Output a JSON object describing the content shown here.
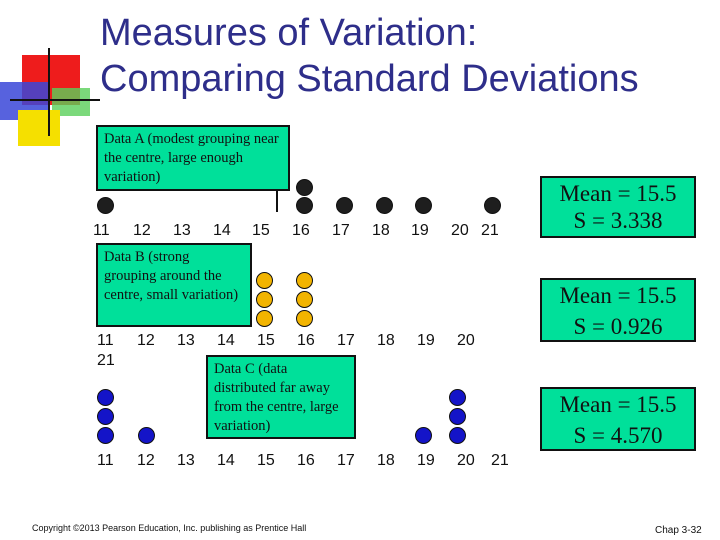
{
  "title": {
    "line1": "Measures of Variation:",
    "line2": "Comparing Standard Deviations"
  },
  "datasets": [
    {
      "label": "Data A (modest grouping near the centre, large enough variation)",
      "mean": "Mean = 15.5",
      "sd": "S = 3.338",
      "color": "#1e1e1e"
    },
    {
      "label": "Data B (strong grouping around the centre, small variation)",
      "mean": "Mean = 15.5",
      "sd": "S = 0.926",
      "color": "#f2b400"
    },
    {
      "label": "Data C (data distributed far away from the centre, large variation)",
      "mean": "Mean = 15.5",
      "sd": "S = 4.570",
      "color": "#1414c8"
    }
  ],
  "axis_labels": [
    "11",
    "12",
    "13",
    "14",
    "15",
    "16",
    "17",
    "18",
    "19",
    "20",
    "21"
  ],
  "footer": {
    "copyright": "Copyright ©2013 Pearson Education, Inc. publishing as Prentice Hall",
    "chapter": "Chap 3-32"
  },
  "colors": {
    "box_fill": "#00e09a",
    "title": "#2e2e8a"
  }
}
